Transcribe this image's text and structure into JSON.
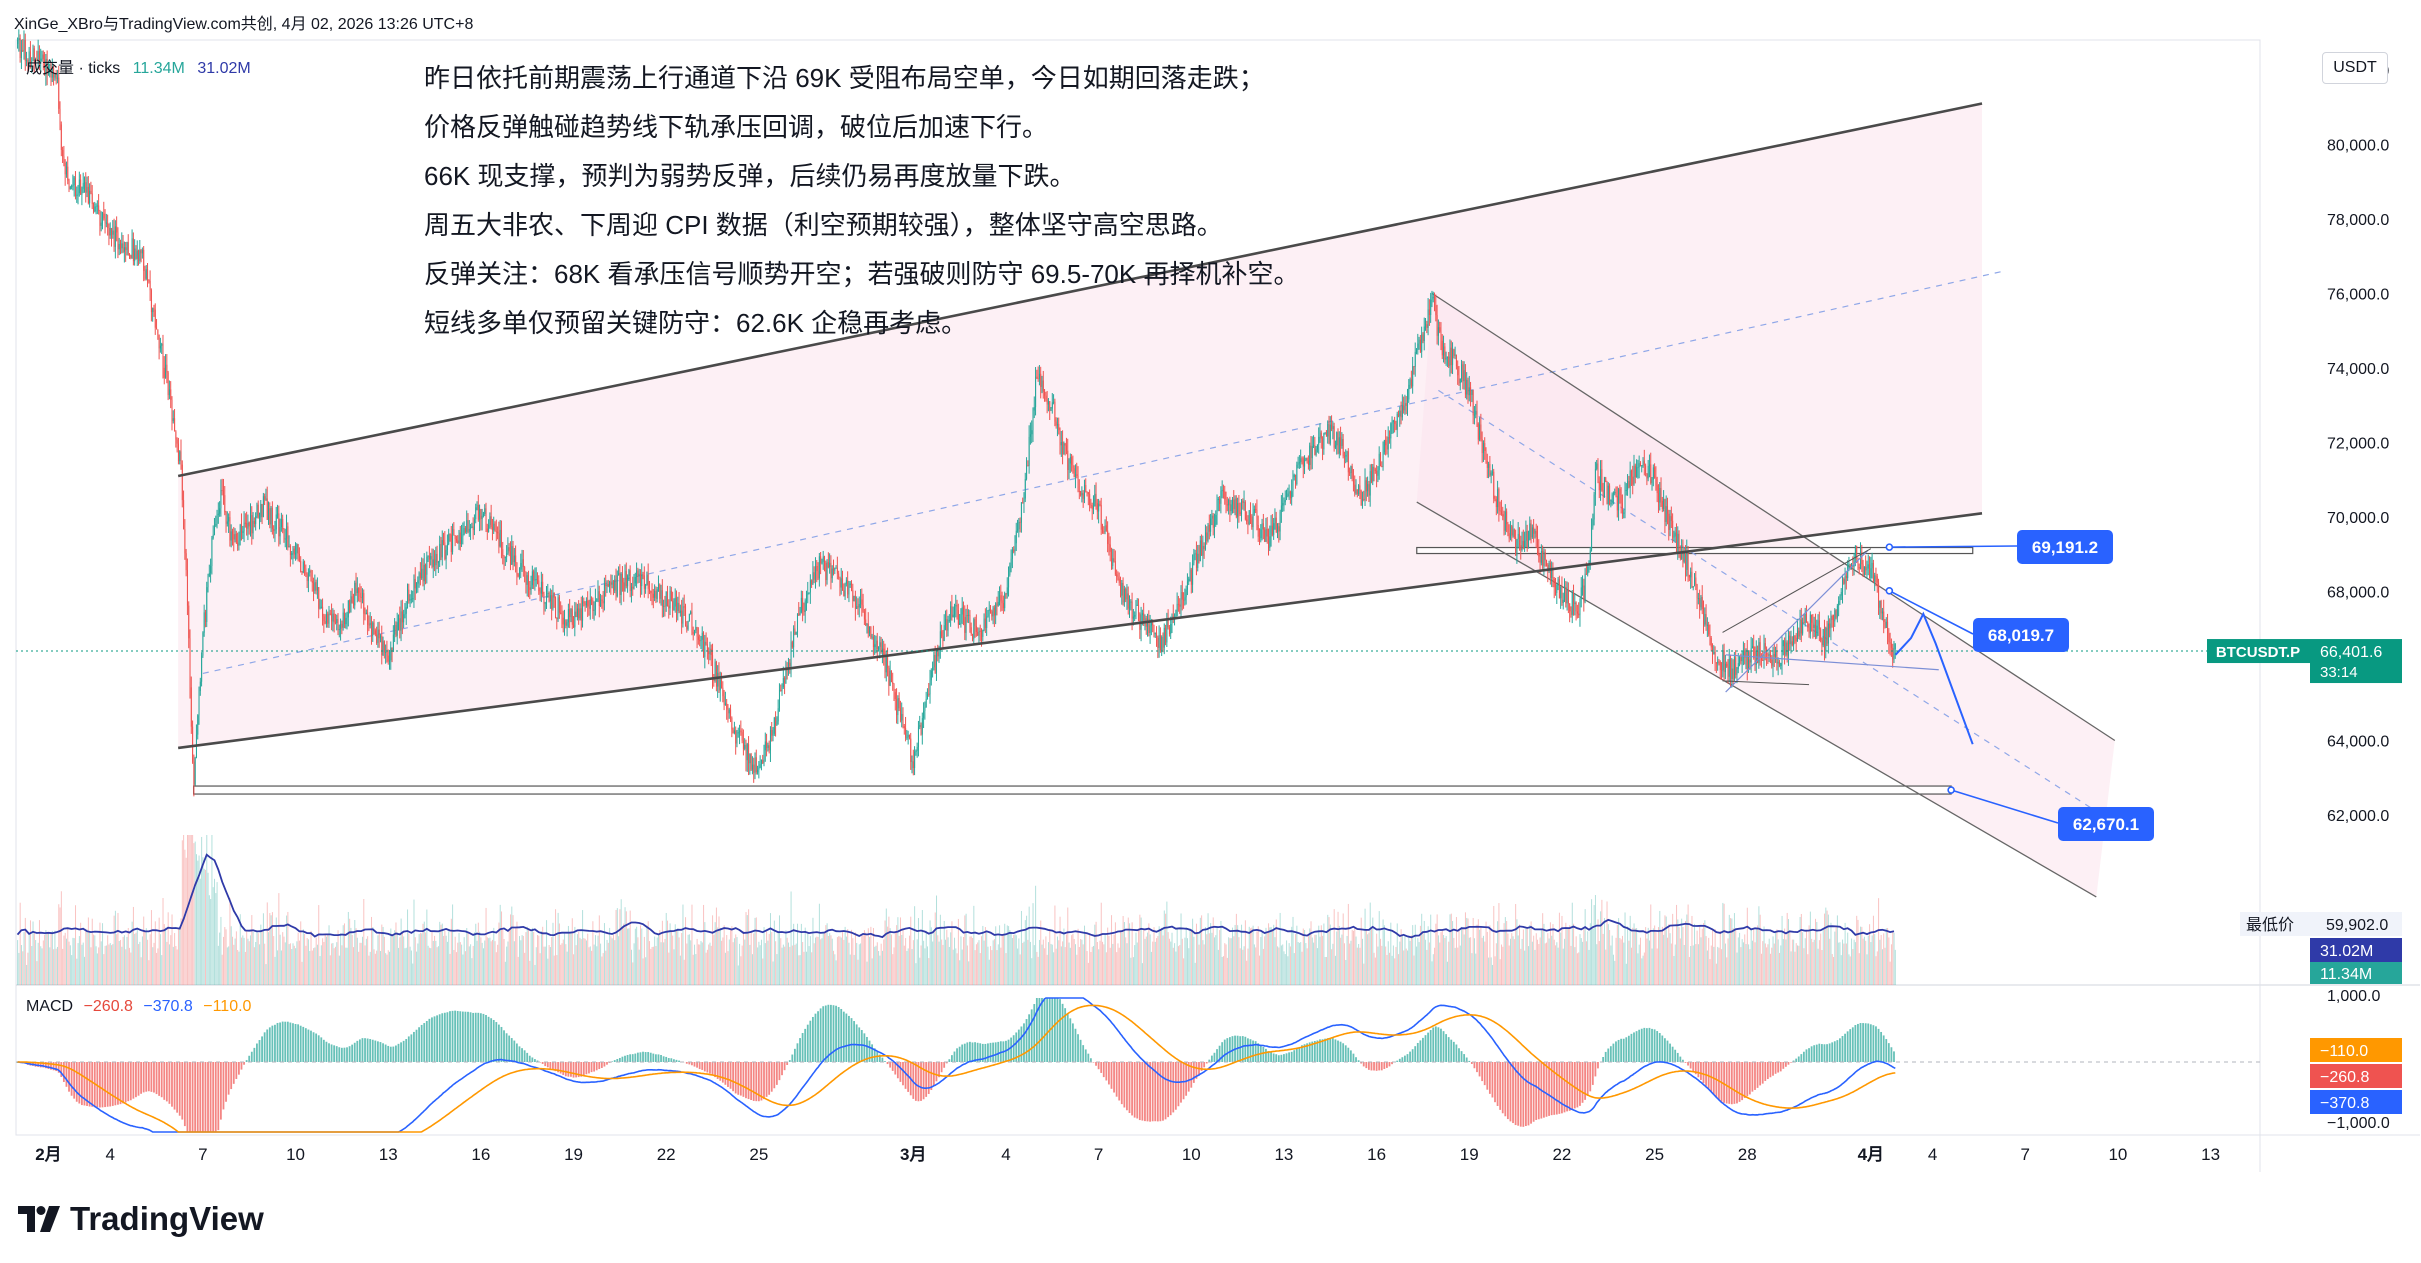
{
  "header": {
    "publisher": "XinGe_XBro与TradingView.com共创, 4月 02, 2026 13:26 UTC+8"
  },
  "volume_legend": {
    "label": "成交量 · ticks",
    "value1": "11.34M",
    "value2": "31.02M"
  },
  "macd_legend": {
    "label": "MACD",
    "hist": "−260.8",
    "macd": "−370.8",
    "signal": "−110.0"
  },
  "notes": [
    "昨日依托前期震荡上行通道下沿 69K 受阻布局空单，今日如期回落走跌；",
    "价格反弹触碰趋势线下轨承压回调，破位后加速下行。",
    "66K 现支撑，预判为弱势反弹，后续仍易再度放量下跌。",
    "周五大非农、下周迎 CPI 数据（利空预期较强），整体坚守高空思路。",
    "反弹关注：68K 看承压信号顺势开空；若强破则防守 69.5-70K 再择机补空。",
    "短线多单仅预留关键防守：62.6K 企稳再考虑。"
  ],
  "currency": "USDT",
  "brand": "TradingView",
  "colors": {
    "up": "#26a69a",
    "down": "#ef5350",
    "channel": "#4a4a4a",
    "callout": "#2962ff",
    "ticker": "#089981",
    "macd": "#2962ff",
    "signal": "#ff9800",
    "volume_ma": "#2f3aa8",
    "zone": "#fce4ec"
  },
  "chart_data": {
    "type": "candlestick",
    "symbol": "BTCUSDT.P",
    "timeframe": "1h",
    "price_axis": {
      "ylim": [
        59200,
        83000
      ],
      "ticks": [
        "82,000.0",
        "80,000.0",
        "78,000.0",
        "76,000.0",
        "74,000.0",
        "72,000.0",
        "70,000.0",
        "68,000.0",
        "66,000.0",
        "64,000.0",
        "62,000.0"
      ]
    },
    "macd_axis": {
      "ticks": [
        "1,000.0",
        "−1,000.0"
      ]
    },
    "x_axis": {
      "labels": [
        "2月",
        "4",
        "7",
        "10",
        "13",
        "16",
        "19",
        "22",
        "25",
        "3月",
        "4",
        "7",
        "10",
        "13",
        "16",
        "19",
        "22",
        "25",
        "28",
        "4月",
        "4",
        "7",
        "10",
        "13"
      ],
      "day_index": [
        0,
        2,
        5,
        8,
        11,
        14,
        17,
        20,
        23,
        28,
        31,
        34,
        37,
        40,
        43,
        46,
        49,
        52,
        55,
        59,
        61,
        64,
        67,
        70
      ],
      "range_days": [
        -1.05,
        71.6
      ]
    },
    "price_path": [
      [
        -1.0,
        82700
      ],
      [
        0.0,
        82000
      ],
      [
        0.3,
        81500
      ],
      [
        0.5,
        79200
      ],
      [
        1.0,
        78800
      ],
      [
        1.5,
        78400
      ],
      [
        2.0,
        77600
      ],
      [
        2.5,
        77300
      ],
      [
        3.0,
        77000
      ],
      [
        3.5,
        75200
      ],
      [
        4.0,
        72800
      ],
      [
        4.3,
        71200
      ],
      [
        4.5,
        67500
      ],
      [
        4.7,
        62900
      ],
      [
        5.0,
        66800
      ],
      [
        5.3,
        69300
      ],
      [
        5.6,
        70500
      ],
      [
        6.0,
        69300
      ],
      [
        7.0,
        70300
      ],
      [
        8.0,
        69100
      ],
      [
        9.0,
        67300
      ],
      [
        9.5,
        67200
      ],
      [
        10.0,
        68100
      ],
      [
        10.5,
        67000
      ],
      [
        11.0,
        66200
      ],
      [
        11.5,
        67600
      ],
      [
        12.0,
        68400
      ],
      [
        13.0,
        69300
      ],
      [
        14.0,
        70100
      ],
      [
        15.0,
        68900
      ],
      [
        16.0,
        67900
      ],
      [
        17.0,
        67200
      ],
      [
        18.0,
        68000
      ],
      [
        19.0,
        68400
      ],
      [
        20.0,
        67800
      ],
      [
        20.8,
        67200
      ],
      [
        21.5,
        66000
      ],
      [
        22.2,
        64300
      ],
      [
        23.0,
        63100
      ],
      [
        23.6,
        64800
      ],
      [
        24.3,
        67400
      ],
      [
        25.0,
        68700
      ],
      [
        26.0,
        68000
      ],
      [
        27.0,
        66300
      ],
      [
        27.6,
        64600
      ],
      [
        28.0,
        63400
      ],
      [
        28.6,
        65800
      ],
      [
        29.2,
        67600
      ],
      [
        30.0,
        66900
      ],
      [
        31.0,
        67900
      ],
      [
        31.5,
        70100
      ],
      [
        32.0,
        73800
      ],
      [
        32.5,
        73000
      ],
      [
        33.0,
        71400
      ],
      [
        34.0,
        70200
      ],
      [
        34.5,
        68600
      ],
      [
        35.0,
        67600
      ],
      [
        35.5,
        67100
      ],
      [
        36.0,
        66700
      ],
      [
        36.5,
        67300
      ],
      [
        37.0,
        68500
      ],
      [
        37.5,
        69600
      ],
      [
        38.0,
        70500
      ],
      [
        39.0,
        70000
      ],
      [
        39.5,
        69300
      ],
      [
        40.0,
        70200
      ],
      [
        40.5,
        71300
      ],
      [
        41.0,
        71900
      ],
      [
        41.5,
        72300
      ],
      [
        42.0,
        71600
      ],
      [
        42.5,
        70500
      ],
      [
        43.0,
        71300
      ],
      [
        43.5,
        72300
      ],
      [
        44.0,
        73300
      ],
      [
        44.4,
        74600
      ],
      [
        44.8,
        75800
      ],
      [
        45.0,
        74800
      ],
      [
        45.6,
        74000
      ],
      [
        46.0,
        73400
      ],
      [
        46.5,
        71600
      ],
      [
        47.0,
        70200
      ],
      [
        47.5,
        69200
      ],
      [
        48.0,
        69600
      ],
      [
        48.5,
        68600
      ],
      [
        49.0,
        67900
      ],
      [
        49.5,
        67500
      ],
      [
        49.8,
        68300
      ],
      [
        50.1,
        71200
      ],
      [
        50.5,
        70600
      ],
      [
        51.0,
        70400
      ],
      [
        51.5,
        71700
      ],
      [
        52.0,
        71000
      ],
      [
        52.5,
        69700
      ],
      [
        53.0,
        68900
      ],
      [
        53.5,
        67600
      ],
      [
        54.0,
        66300
      ],
      [
        54.5,
        65900
      ],
      [
        55.0,
        66200
      ],
      [
        55.5,
        66400
      ],
      [
        56.0,
        66100
      ],
      [
        56.5,
        66900
      ],
      [
        57.0,
        67200
      ],
      [
        57.5,
        66700
      ],
      [
        58.0,
        67900
      ],
      [
        58.5,
        68900
      ],
      [
        59.0,
        68600
      ],
      [
        59.3,
        67700
      ],
      [
        59.6,
        66600
      ],
      [
        59.8,
        66300
      ]
    ],
    "forecast_path": [
      [
        59.8,
        66300
      ],
      [
        60.3,
        66750
      ],
      [
        60.7,
        67400
      ],
      [
        61.1,
        66600
      ],
      [
        62.3,
        63900
      ]
    ],
    "channel_upper": [
      [
        4.2,
        71100
      ],
      [
        62.6,
        81100
      ]
    ],
    "channel_lower": [
      [
        4.2,
        63800
      ],
      [
        62.6,
        70100
      ]
    ],
    "channel_mid": [
      [
        5.0,
        65800
      ],
      [
        63.3,
        76600
      ]
    ],
    "down_channel_upper": [
      [
        44.8,
        76000
      ],
      [
        66.9,
        64000
      ]
    ],
    "down_channel_lower": [
      [
        44.3,
        70400
      ],
      [
        66.3,
        59800
      ]
    ],
    "down_channel_mid": [
      [
        45.0,
        73400
      ],
      [
        66.3,
        62100
      ]
    ],
    "resistance_line": {
      "price": 69100,
      "from": 44.3,
      "to": 62.3
    },
    "support_line": {
      "price": 62670,
      "from": 4.7,
      "to": 61.6
    },
    "wedge_upper": [
      [
        54.3,
        65300
      ],
      [
        58.9,
        69100
      ]
    ],
    "wedge_lower": [
      [
        54.3,
        66300
      ],
      [
        61.2,
        65900
      ]
    ],
    "wedge_upper2": [
      [
        54.2,
        66900
      ],
      [
        59.0,
        69150
      ]
    ],
    "wedge_lower2": [
      [
        54.2,
        65600
      ],
      [
        57.0,
        65500
      ]
    ],
    "callouts": [
      {
        "label": "69,191.2",
        "price": 69191.2,
        "anchor_day": 59.6
      },
      {
        "label": "68,019.7",
        "price": 68019.7,
        "anchor_day": 59.6
      },
      {
        "label": "62,670.1",
        "price": 62670.1,
        "anchor_day": 61.6
      }
    ],
    "last_price": {
      "label": "BTCUSDT.P",
      "value": "66,401.6",
      "countdown": "33:14",
      "price": 66401.6
    },
    "lowest_label": {
      "label": "最低价",
      "value": "59,902.0"
    },
    "volume_badges": {
      "ma": "31.02M",
      "vol": "11.34M"
    },
    "macd_badges": {
      "signal": "−110.0",
      "hist": "−260.8",
      "macd": "−370.8"
    }
  }
}
